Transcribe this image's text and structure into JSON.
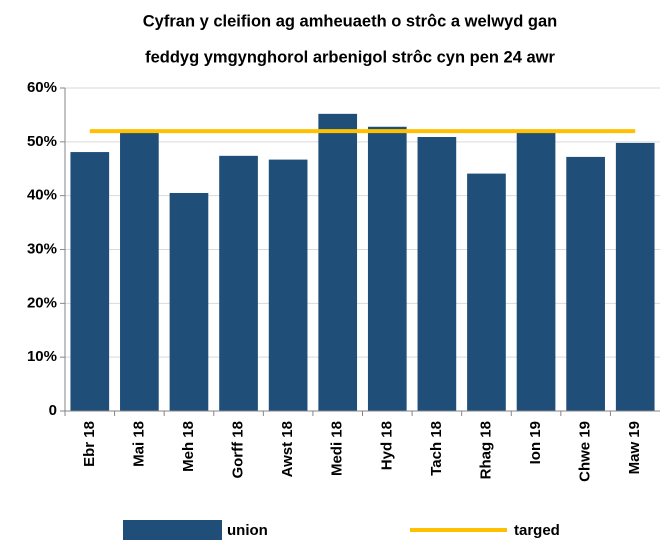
{
  "chart_data": {
    "type": "bar",
    "title": [
      "Cyfran y cleifion ag amheuaeth o strôc a welwyd gan",
      "feddyg ymgynghorol arbenigol strôc cyn pen 24 awr"
    ],
    "categories": [
      "Ebr 18",
      "Mai 18",
      "Meh 18",
      "Gorff 18",
      "Awst 18",
      "Medi 18",
      "Hyd 18",
      "Tach 18",
      "Rhag 18",
      "Ion 19",
      "Chwe 19",
      "Maw 19"
    ],
    "series": [
      {
        "name": "union",
        "type": "bar",
        "color": "#1f4e79",
        "values": [
          48.1,
          51.7,
          40.5,
          47.4,
          46.7,
          55.2,
          52.8,
          50.9,
          44.1,
          52.2,
          47.2,
          49.8
        ]
      },
      {
        "name": "targed",
        "type": "line",
        "color": "#ffc000",
        "values": [
          52,
          52,
          52,
          52,
          52,
          52,
          52,
          52,
          52,
          52,
          52,
          52
        ]
      }
    ],
    "ylim": [
      0,
      60
    ],
    "yticks": [
      0,
      {
        "value": 10,
        "label": "10%"
      },
      {
        "value": 20,
        "label": "20%"
      },
      {
        "value": 30,
        "label": "30%"
      },
      {
        "value": 40,
        "label": "40%"
      },
      {
        "value": 50,
        "label": "50%"
      },
      {
        "value": 60,
        "label": "60%"
      }
    ],
    "grid": true,
    "legend": "bottom"
  }
}
